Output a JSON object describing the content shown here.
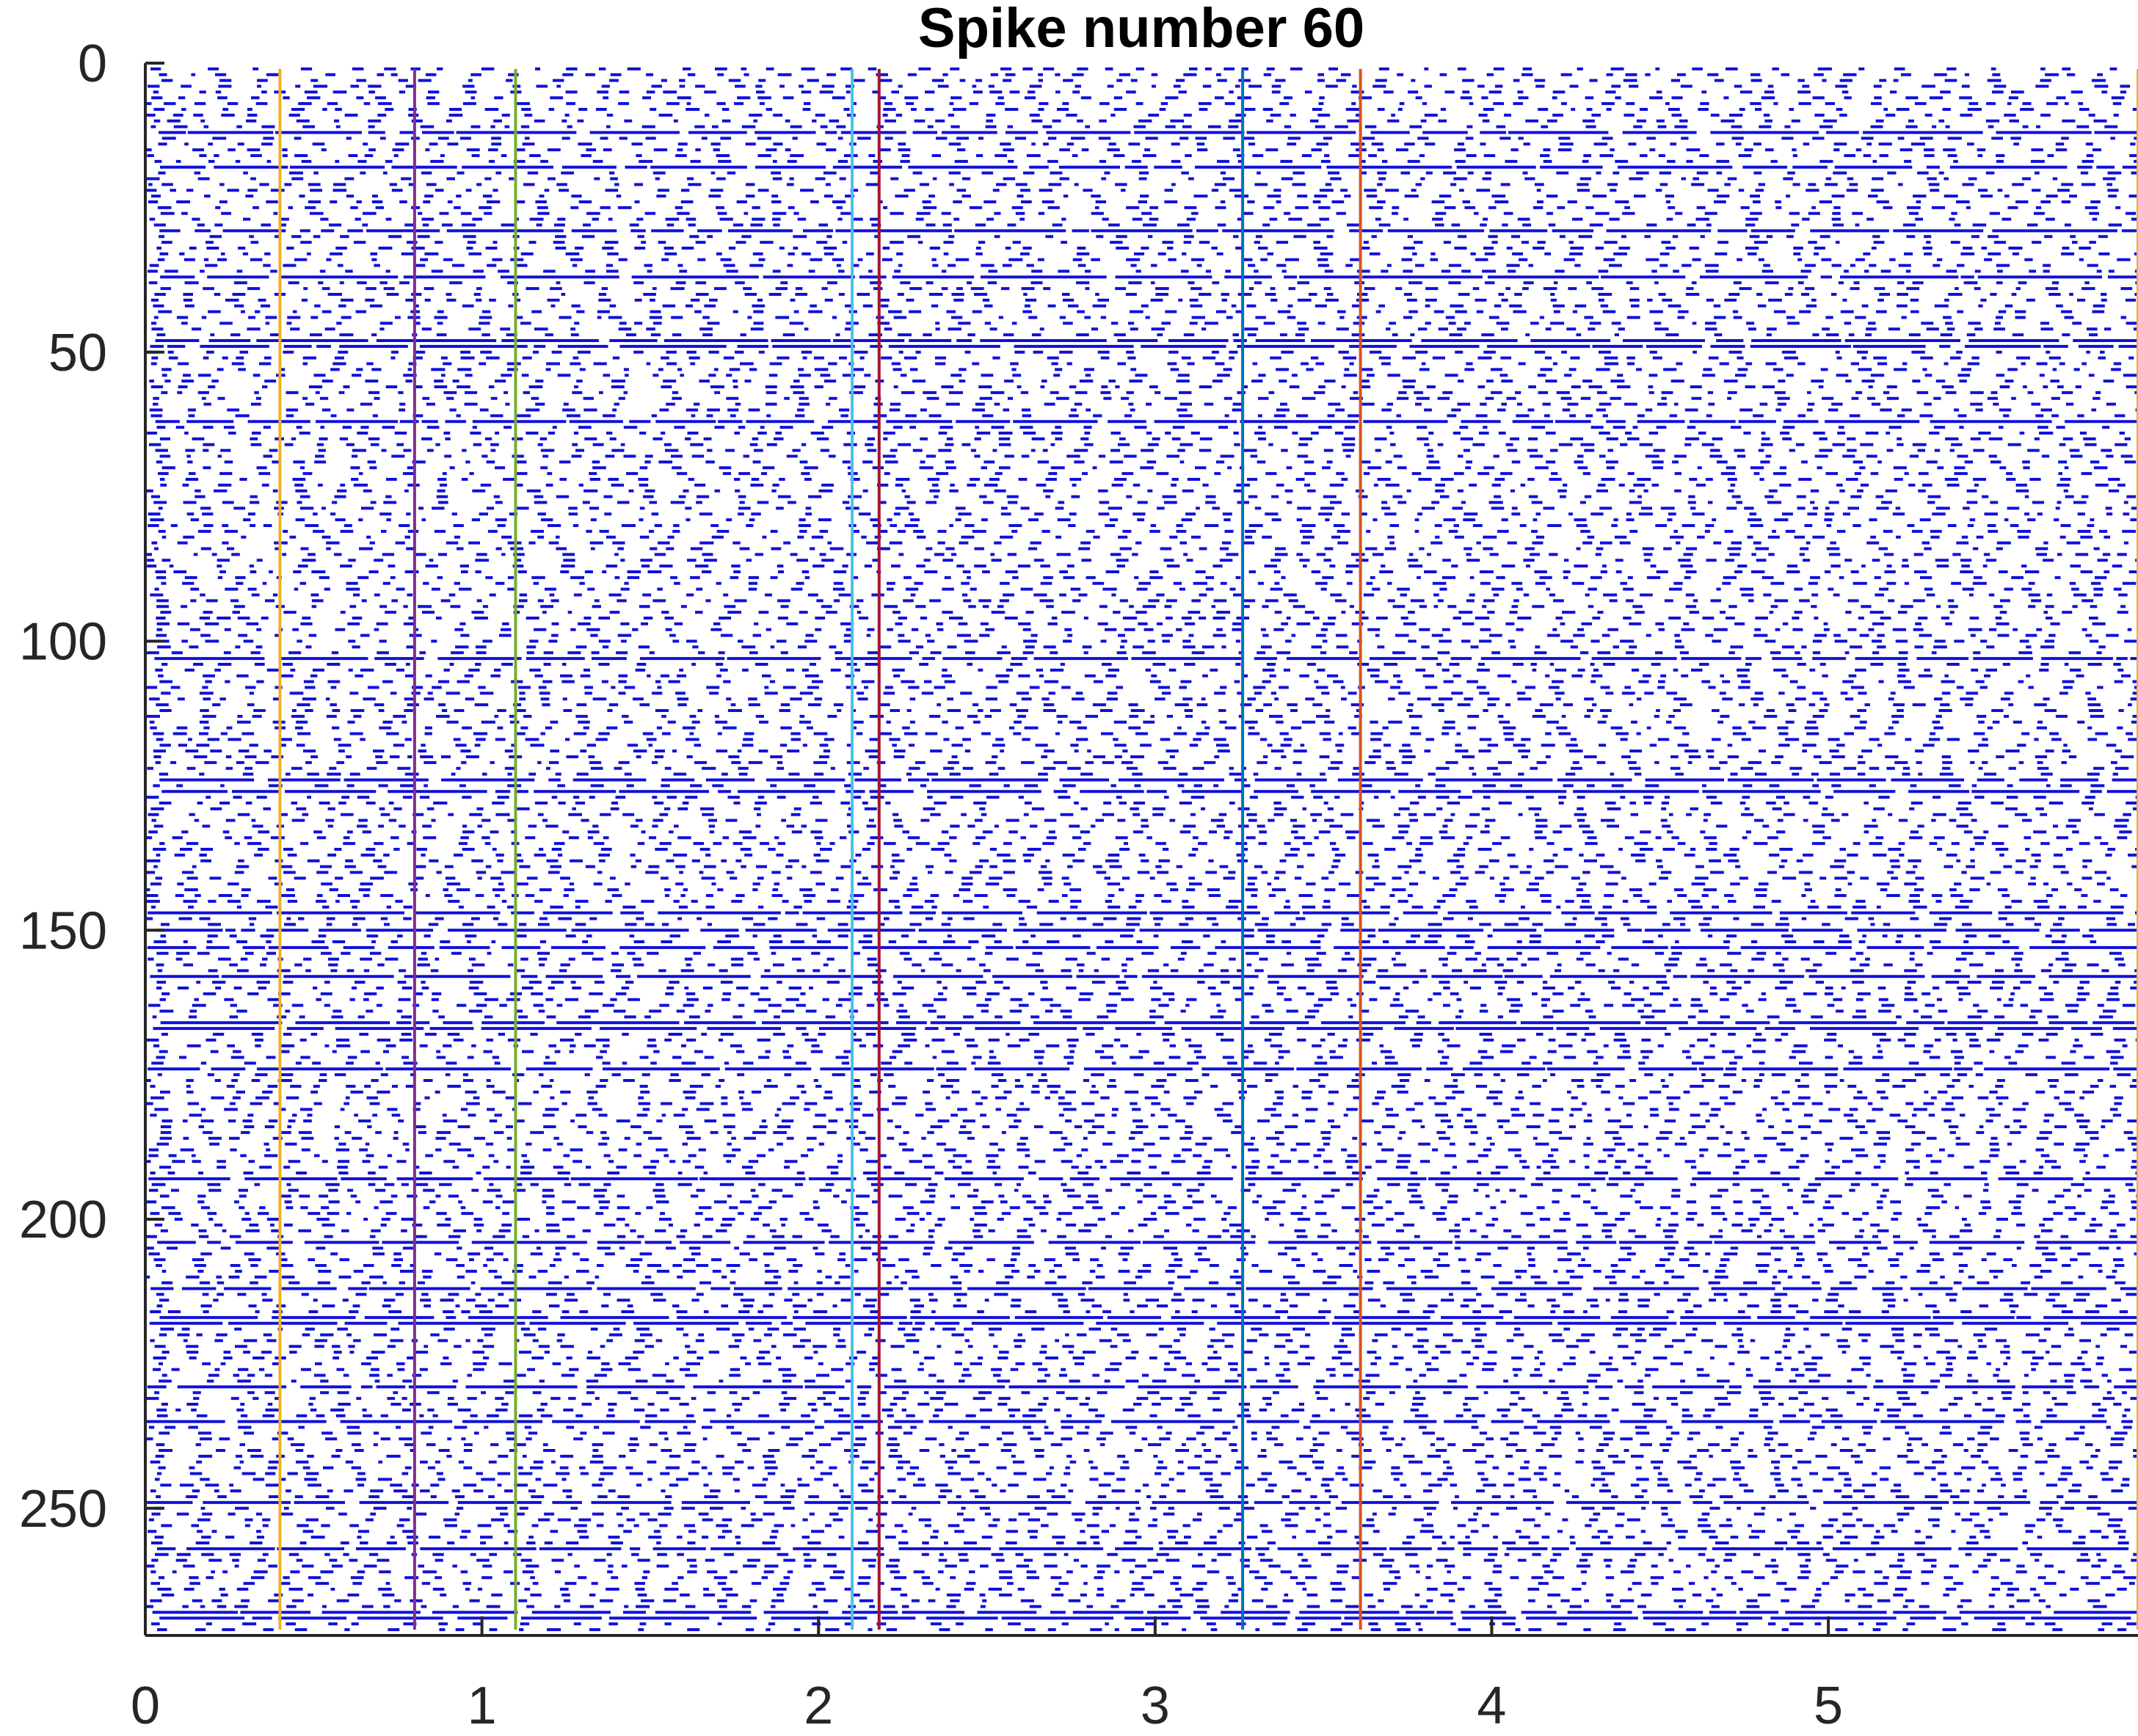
{
  "chart_data": {
    "type": "raster",
    "title": "Spike number 60",
    "xlabel": "",
    "ylabel": "",
    "xlim": [
      0,
      5.92
    ],
    "ylim": [
      0,
      272
    ],
    "y_reversed": true,
    "grid": false,
    "xticks": [
      0,
      1,
      2,
      3,
      4,
      5
    ],
    "yticks": [
      0,
      50,
      100,
      150,
      200,
      250
    ],
    "raster_color": "#1010d8",
    "trial_count": 271,
    "event_lines": [
      {
        "x": 0.0,
        "color": "#c0501e"
      },
      {
        "x": 0.4,
        "color": "#edb120"
      },
      {
        "x": 0.8,
        "color": "#7e2f8e"
      },
      {
        "x": 1.1,
        "color": "#77ac30"
      },
      {
        "x": 2.1,
        "color": "#4dbeee"
      },
      {
        "x": 2.18,
        "color": "#a2142f"
      },
      {
        "x": 3.26,
        "color": "#0072bd"
      },
      {
        "x": 3.61,
        "color": "#d95319"
      },
      {
        "x": 5.92,
        "color": "#edb120"
      }
    ]
  }
}
